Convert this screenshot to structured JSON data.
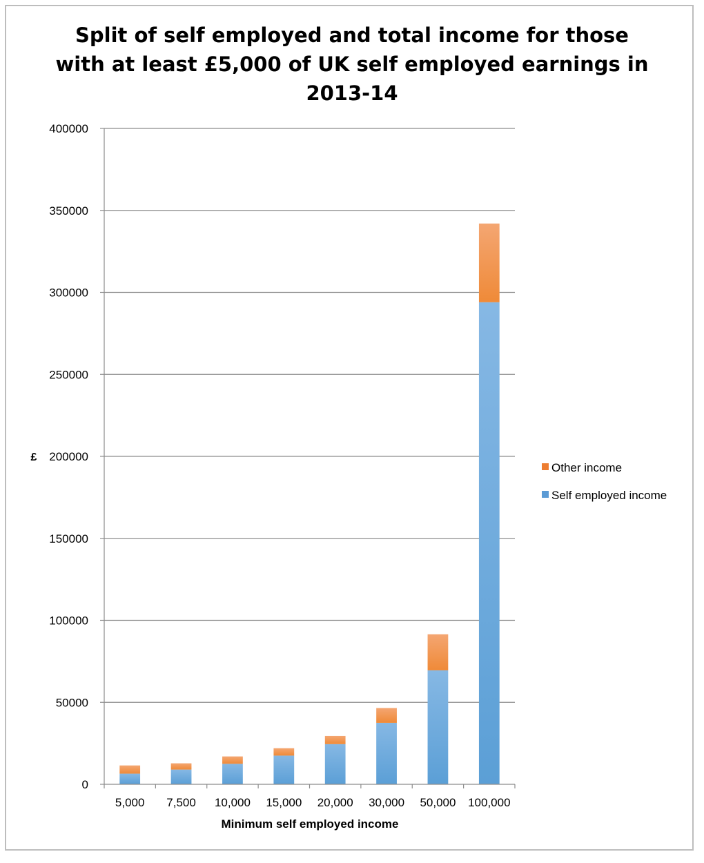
{
  "chart_data": {
    "type": "bar",
    "stacked": true,
    "title": "Split of self employed and total income for those with at least £5,000 of UK self employed earnings in 2013-14",
    "title_lines": [
      "Split of self employed and total income for those",
      "with at least £5,000 of UK self employed earnings in",
      "2013-14"
    ],
    "xlabel": "Minimum self employed income",
    "ylabel": "£",
    "ylim": [
      0,
      400000
    ],
    "yticks": [
      0,
      50000,
      100000,
      150000,
      200000,
      250000,
      300000,
      350000,
      400000
    ],
    "ytick_labels": [
      "0",
      "50000",
      "100000",
      "150000",
      "200000",
      "250000",
      "300000",
      "350000",
      "400000"
    ],
    "grid": true,
    "legend_position": "right",
    "categories": [
      "5,000",
      "7,500",
      "10,000",
      "15,000",
      "20,000",
      "30,000",
      "50,000",
      "100,000"
    ],
    "series": [
      {
        "name": "Self employed income",
        "color": "#5b9bd5",
        "values": [
          6500,
          9000,
          12500,
          17500,
          24500,
          37500,
          69500,
          294000
        ]
      },
      {
        "name": "Other income",
        "color": "#ed7d31",
        "values": [
          5000,
          3800,
          4500,
          4500,
          5000,
          9000,
          22000,
          48000
        ]
      }
    ],
    "legend_order": [
      "Other income",
      "Self employed income"
    ]
  }
}
